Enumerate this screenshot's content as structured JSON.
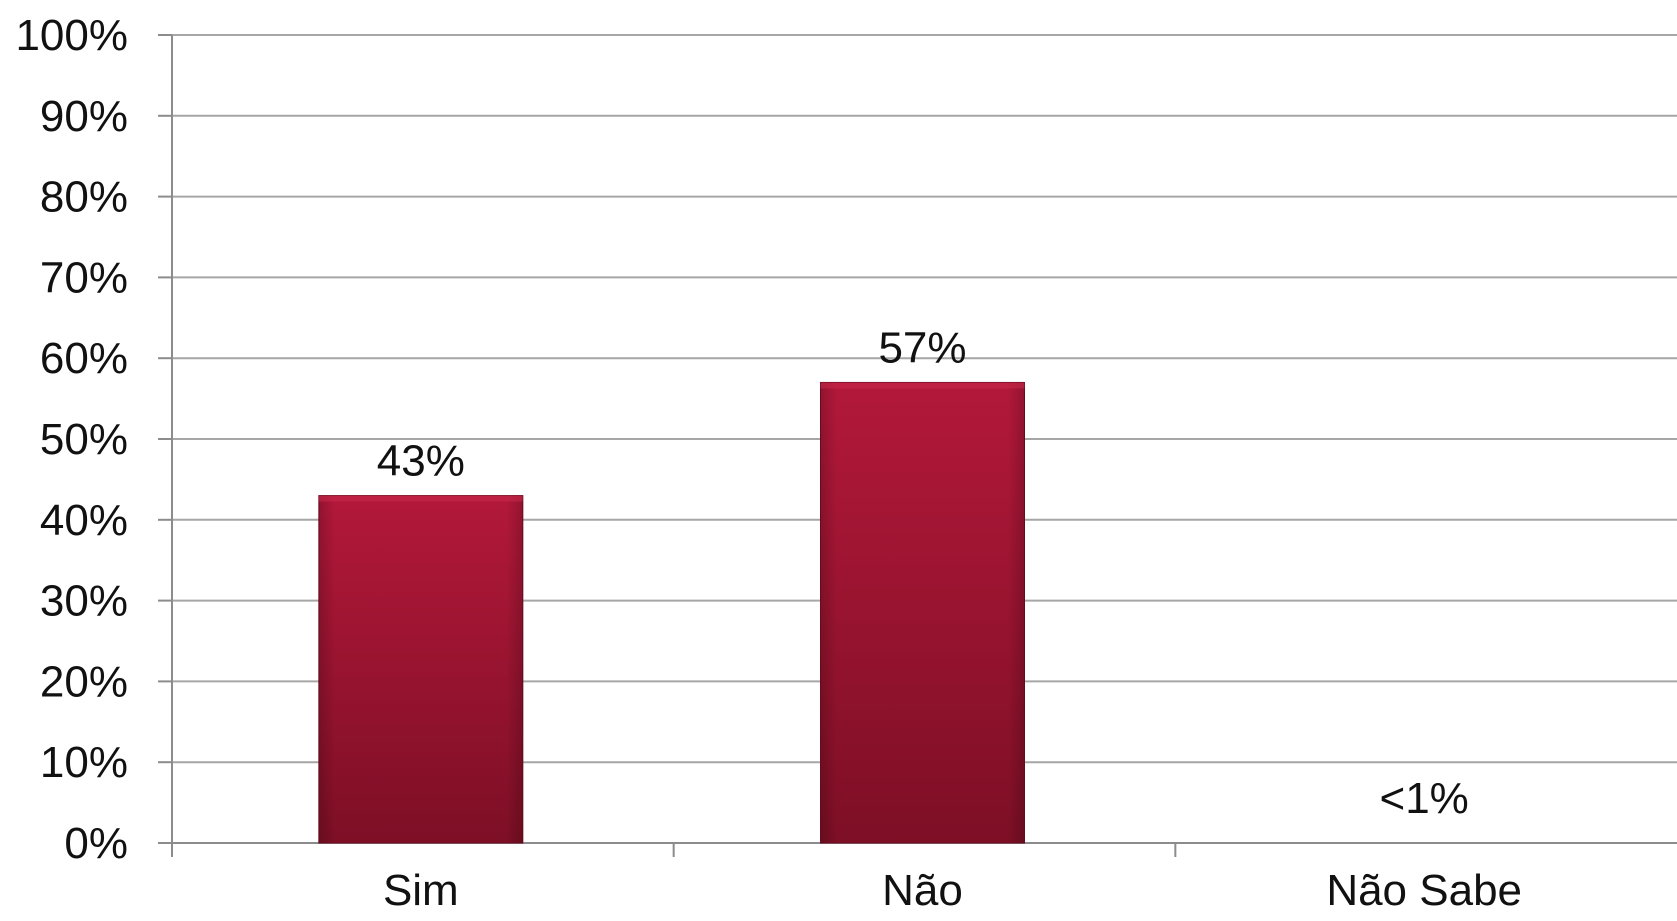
{
  "chart_data": {
    "type": "bar",
    "categories": [
      "Sim",
      "Não",
      "Não Sabe"
    ],
    "values": [
      43,
      57,
      0.5
    ],
    "data_labels": [
      "43%",
      "57%",
      "<1%"
    ],
    "y_ticks": [
      "0%",
      "10%",
      "20%",
      "30%",
      "40%",
      "50%",
      "60%",
      "70%",
      "80%",
      "90%",
      "100%"
    ],
    "ylim": [
      0,
      100
    ],
    "unit": "%",
    "grid": true,
    "legend": "none",
    "title": "",
    "xlabel": "",
    "ylabel": "",
    "colors": {
      "bar_top": "#b3183a",
      "bar_bottom": "#7d0f25",
      "bar_edge": "#6e0d21",
      "grid": "#a6a6a6",
      "axis": "#8c8c8c",
      "text": "#111111"
    }
  }
}
